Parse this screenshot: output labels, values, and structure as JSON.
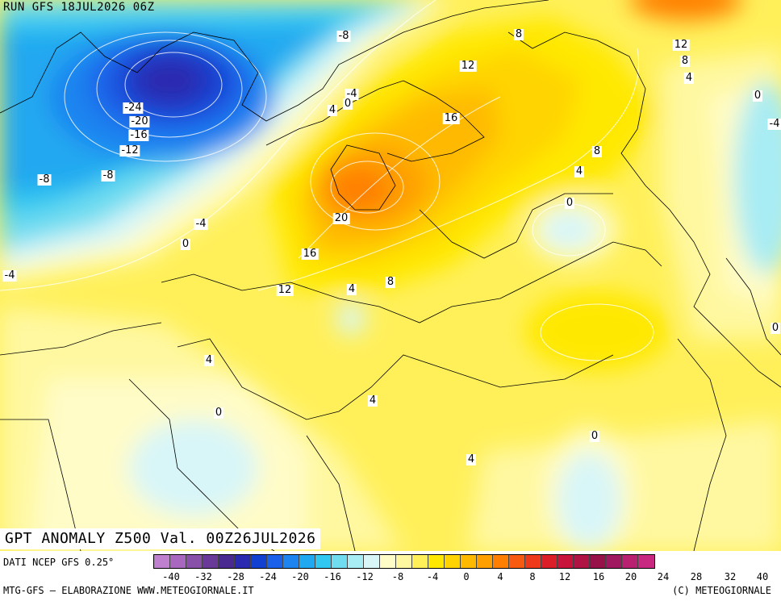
{
  "run_title": "RUN GFS 18JUL2026 06Z",
  "map_title": "GPT ANOMALY Z500 Val. 00Z26JUL2026",
  "legend": {
    "source": "DATI NCEP GFS 0.25°",
    "colors": [
      "#c080d0",
      "#a868c0",
      "#8850a8",
      "#6a3a98",
      "#4a2a90",
      "#2a2ab0",
      "#1240d0",
      "#1a60e8",
      "#1e84f0",
      "#20a8f0",
      "#30c8f0",
      "#70dcf0",
      "#a8ecf4",
      "#d8f6f8",
      "#fffcc8",
      "#fff8a0",
      "#fff05a",
      "#ffe800",
      "#ffd400",
      "#ffba00",
      "#ffa000",
      "#ff8000",
      "#f85a10",
      "#ee3a1a",
      "#dc1e28",
      "#c8143a",
      "#b01444",
      "#98124a",
      "#a01860",
      "#b82070",
      "#c82880"
    ],
    "ticks": [
      "-40",
      "-32",
      "-28",
      "-24",
      "-20",
      "-16",
      "-12",
      "-8",
      "-4",
      "0",
      "4",
      "8",
      "12",
      "16",
      "20",
      "24",
      "28",
      "32",
      "40"
    ]
  },
  "footer": {
    "left": "MTG-GFS – ELABORAZIONE WWW.METEOGIORNALE.IT",
    "right": "(C) METEOGIORNALE"
  },
  "contour_labels": [
    "-24",
    "-20",
    "-16",
    "-12",
    "-8",
    "-8",
    "-4",
    "0",
    "-8",
    "-4",
    "0",
    "4",
    "8",
    "12",
    "16",
    "20",
    "16",
    "12",
    "4",
    "8",
    "12",
    "8",
    "4",
    "0",
    "-4",
    "0",
    "8",
    "4",
    "4",
    "0",
    "4",
    "0",
    "4",
    "-4",
    "0"
  ]
}
